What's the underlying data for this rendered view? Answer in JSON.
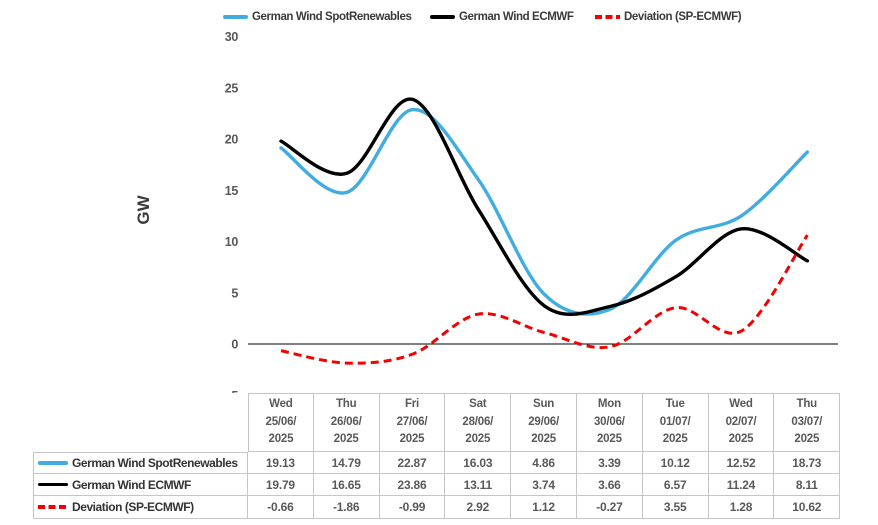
{
  "colors": {
    "spot_blue": "#41ACE1",
    "ecmwf_black": "#000000",
    "deviation_red": "#F40000",
    "axis_line": "#000000",
    "tick_text": "#595959",
    "table_border": "#C6C6C6"
  },
  "chart_data": {
    "type": "line",
    "title": "",
    "xlabel": "",
    "ylabel": "GW",
    "ylim": [
      -5,
      30
    ],
    "yticks": [
      30,
      25,
      20,
      15,
      10,
      5,
      0,
      -5
    ],
    "grid": false,
    "legend_position": "top",
    "smooth_lines": true,
    "categories": [
      "Wed 25/06/2025",
      "Thu 26/06/2025",
      "Fri 27/06/2025",
      "Sat 28/06/2025",
      "Sun 29/06/2025",
      "Mon 30/06/2025",
      "Tue 01/07/2025",
      "Wed 02/07/2025",
      "Thu 03/07/2025"
    ],
    "categories_lines": [
      [
        "Wed",
        "25/06/",
        "2025"
      ],
      [
        "Thu",
        "26/06/",
        "2025"
      ],
      [
        "Fri",
        "27/06/",
        "2025"
      ],
      [
        "Sat",
        "28/06/",
        "2025"
      ],
      [
        "Sun",
        "29/06/",
        "2025"
      ],
      [
        "Mon",
        "30/06/",
        "2025"
      ],
      [
        "Tue",
        "01/07/",
        "2025"
      ],
      [
        "Wed",
        "02/07/",
        "2025"
      ],
      [
        "Thu",
        "03/07/",
        "2025"
      ]
    ],
    "series": [
      {
        "name": "German Wind SpotRenewables",
        "color": "#41ACE1",
        "style": "solid",
        "values": [
          19.13,
          14.79,
          22.87,
          16.03,
          4.86,
          3.39,
          10.12,
          12.52,
          18.73
        ]
      },
      {
        "name": "German Wind ECMWF",
        "color": "#000000",
        "style": "solid",
        "values": [
          19.79,
          16.65,
          23.86,
          13.11,
          3.74,
          3.66,
          6.57,
          11.24,
          8.11
        ]
      },
      {
        "name": "Deviation (SP-ECMWF)",
        "color": "#F40000",
        "style": "dashed",
        "values": [
          -0.66,
          -1.86,
          -0.99,
          2.92,
          1.12,
          -0.27,
          3.55,
          1.28,
          10.62
        ]
      }
    ]
  },
  "table": {
    "value_format_decimals": 2
  }
}
